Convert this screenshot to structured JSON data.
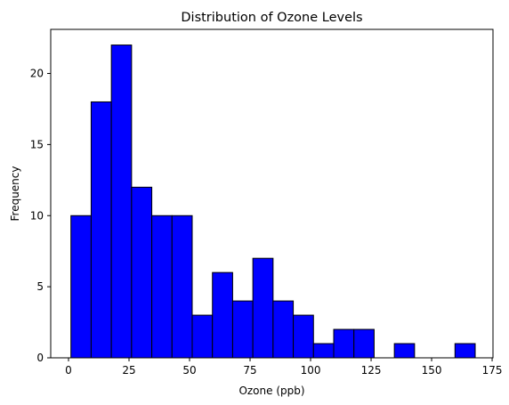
{
  "chart_data": {
    "type": "bar",
    "title": "Distribution of Ozone Levels",
    "xlabel": "Ozone (ppb)",
    "ylabel": "Frequency",
    "xlim": [
      -7.35,
      175.35
    ],
    "ylim": [
      0,
      23.1
    ],
    "xticks": [
      0,
      25,
      50,
      75,
      100,
      125,
      150,
      175
    ],
    "yticks": [
      0,
      5,
      10,
      15,
      20
    ],
    "bin_edges": [
      1.0,
      9.35,
      17.7,
      26.05,
      34.4,
      42.75,
      51.1,
      59.45,
      67.8,
      76.15,
      84.5,
      92.85,
      101.2,
      109.55,
      117.9,
      126.25,
      134.6,
      142.95,
      151.3,
      159.65,
      168.0
    ],
    "values": [
      10,
      18,
      22,
      12,
      10,
      10,
      3,
      6,
      4,
      7,
      4,
      3,
      1,
      2,
      2,
      0,
      1,
      0,
      0,
      1
    ],
    "bar_color": "#0000ff",
    "edge_color": "#000000",
    "grid": false,
    "legend": "none"
  }
}
